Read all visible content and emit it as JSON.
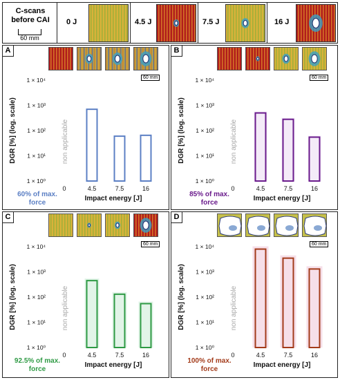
{
  "header": {
    "title": "C-scans before CAI",
    "scale_label": "60 mm",
    "energies": [
      "0 J",
      "4.5 J",
      "7.5 J",
      "16 J"
    ]
  },
  "colors": {
    "panel_a": "#5b7fc4",
    "panel_b": "#6a1b8c",
    "panel_c": "#2e9a44",
    "panel_d": "#a33b1a",
    "cscan_red": "#b01c1c",
    "cscan_yellow": "#d9b23a",
    "cscan_blue": "#3c6fb8"
  },
  "panels": [
    {
      "letter": "A",
      "scale_label": "60 mm",
      "force_label": "60% of max. force"
    },
    {
      "letter": "B",
      "scale_label": "60 mm",
      "force_label": "85% of max. force"
    },
    {
      "letter": "C",
      "scale_label": "60 mm",
      "force_label": "92.5% of max. force"
    },
    {
      "letter": "D",
      "scale_label": "60 mm",
      "force_label": "100% of max. force"
    }
  ],
  "chart_data": [
    {
      "type": "bar",
      "categories": [
        "0",
        "4.5",
        "7.5",
        "16"
      ],
      "values": [
        null,
        700,
        60,
        65
      ],
      "ylabel": "DGR [%] (log. scale)",
      "xlabel": "Impact energy [J]",
      "ylim": [
        1,
        10000
      ],
      "yscale": "log",
      "yticks": [
        "1 × 10⁰",
        "1 × 10¹",
        "1 × 10²",
        "1 × 10³",
        "1 × 10⁴"
      ],
      "na_label": "non applicable",
      "color": "#5b7fc4"
    },
    {
      "type": "bar",
      "categories": [
        "0",
        "4.5",
        "7.5",
        "16"
      ],
      "values": [
        null,
        500,
        280,
        55
      ],
      "ylabel": "DGR [%] (log. scale)",
      "xlabel": "Impact energy [J]",
      "ylim": [
        1,
        10000
      ],
      "yscale": "log",
      "yticks": [
        "1 × 10⁰",
        "1 × 10¹",
        "1 × 10²",
        "1 × 10³",
        "1 × 10⁴"
      ],
      "na_label": "non applicable",
      "color": "#6a1b8c"
    },
    {
      "type": "bar",
      "categories": [
        "0",
        "4.5",
        "7.5",
        "16"
      ],
      "values": [
        null,
        450,
        130,
        55
      ],
      "ylabel": "DGR [%] (log. scale)",
      "xlabel": "Impact energy [J]",
      "ylim": [
        1,
        10000
      ],
      "yscale": "log",
      "yticks": [
        "1 × 10⁰",
        "1 × 10¹",
        "1 × 10²",
        "1 × 10³",
        "1 × 10⁴"
      ],
      "na_label": "non applicable",
      "color": "#2e9a44"
    },
    {
      "type": "bar",
      "categories": [
        "0",
        "4.5",
        "7.5",
        "16"
      ],
      "values": [
        null,
        8000,
        3500,
        1300
      ],
      "ylabel": "DGR [%] (log. scale)",
      "xlabel": "Impact energy [J]",
      "ylim": [
        1,
        10000
      ],
      "yscale": "log",
      "yticks": [
        "1 × 10⁰",
        "1 × 10¹",
        "1 × 10²",
        "1 × 10³",
        "1 × 10⁴"
      ],
      "na_label": "non applicable",
      "color": "#a33b1a"
    }
  ]
}
